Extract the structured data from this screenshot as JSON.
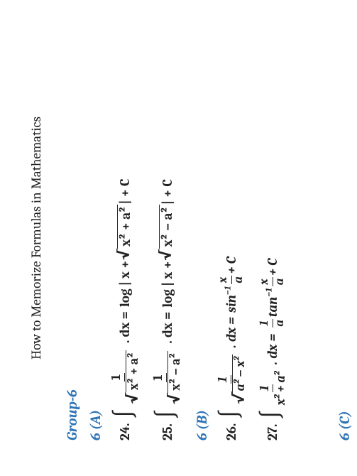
{
  "header": "How to Memorize Formulas in Mathematics",
  "groupTitle": "Group-6",
  "sectA": "6 (A)",
  "row24": {
    "num": "24.",
    "numerTop": "1",
    "denExpr": "x² + a²",
    "dxEq": ". dx =",
    "rhs1": "log | x + ",
    "rhsSqrt": "x² + a²",
    "rhs2": "  | + C"
  },
  "row25": {
    "num": "25.",
    "numerTop": "1",
    "denExpr": "x² − a²",
    "dxEq": ". dx =",
    "rhs1": "log | x + ",
    "rhsSqrt": "x² − a²",
    "rhs2": "  | + C"
  },
  "sectB": "6 (B)",
  "row26": {
    "num": "26.",
    "numerTop": "1",
    "denExpr": "a² − x²",
    "dxEq": ". dx =",
    "func": "sin",
    "sup": "−1",
    "fracTop": "x",
    "fracBot": "a",
    "tail": "+ C"
  },
  "row27": {
    "num": "27.",
    "numerTop": "1",
    "denPlain": "x² + a²",
    "dxEq": " . dx =",
    "coefTop": "1",
    "coefBot": "a",
    "func": "tan",
    "sup": "−1",
    "fracTop": "x",
    "fracBot": "a",
    "tail": "+ C"
  },
  "sectC": "6 (C)"
}
